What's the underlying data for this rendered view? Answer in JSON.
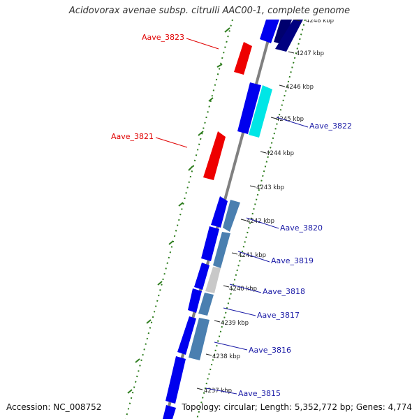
{
  "title": "Acidovorax avenae subsp. citrulli AAC00-1, complete genome",
  "accession": "Accession: NC_008752",
  "summary": "Topology: circular; Length: 5,352,772 bp; Genes: 4,774",
  "colors": {
    "backbone": "#808080",
    "gc_track": "#2e7d1e",
    "forward_gene": "#0000ee",
    "forward_gene_dark": "#00006e",
    "reverse_gene": "#ee0000",
    "operon_blue": "#4a7fb0",
    "operon_cyan": "#00e6e6",
    "operon_grey": "#c8c8c8",
    "label_forward": "#1a1aa6",
    "label_reverse": "#e00000"
  },
  "ticks": [
    {
      "label": "4248 kbp"
    },
    {
      "label": "4247 kbp"
    },
    {
      "label": "4246 kbp"
    },
    {
      "label": "4245 kbp"
    },
    {
      "label": "4244 kbp"
    },
    {
      "label": "4243 kbp"
    },
    {
      "label": "4242 kbp"
    },
    {
      "label": "4241 kbp"
    },
    {
      "label": "4240 kbp"
    },
    {
      "label": "4239 kbp"
    },
    {
      "label": "4238 kbp"
    },
    {
      "label": "4237 kbp"
    }
  ],
  "gene_labels": [
    {
      "text": "Aave_3823",
      "strand": "reverse"
    },
    {
      "text": "Aave_3821",
      "strand": "reverse"
    },
    {
      "text": "Aave_3822",
      "strand": "forward"
    },
    {
      "text": "Aave_3820",
      "strand": "forward"
    },
    {
      "text": "Aave_3819",
      "strand": "forward"
    },
    {
      "text": "Aave_3818",
      "strand": "forward"
    },
    {
      "text": "Aave_3817",
      "strand": "forward"
    },
    {
      "text": "Aave_3816",
      "strand": "forward"
    },
    {
      "text": "Aave_3815",
      "strand": "forward"
    }
  ]
}
